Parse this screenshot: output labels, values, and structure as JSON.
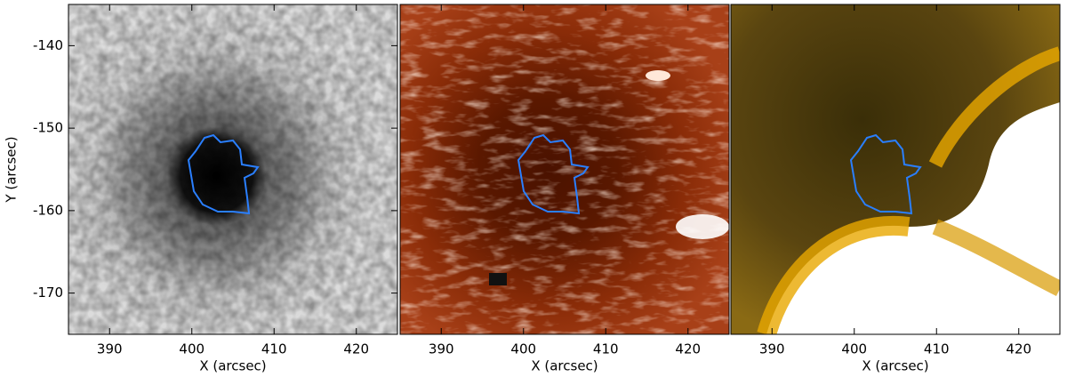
{
  "chart_data": [
    {
      "type": "image",
      "xlabel": "X (arcsec)",
      "ylabel": "Y (arcsec)",
      "xlim": [
        385,
        425
      ],
      "xticks": [
        390,
        400,
        410,
        420
      ],
      "ylim": [
        -175,
        -135
      ],
      "yticks": [
        -140,
        -150,
        -160,
        -170
      ]
    },
    {
      "type": "image",
      "xlabel": "X (arcsec)",
      "xlim": [
        385,
        425
      ],
      "xticks": [
        390,
        400,
        410,
        420
      ]
    },
    {
      "type": "image",
      "xlabel": "X (arcsec)",
      "xlim": [
        385,
        425
      ],
      "xticks": [
        390,
        400,
        410,
        420
      ]
    }
  ]
}
